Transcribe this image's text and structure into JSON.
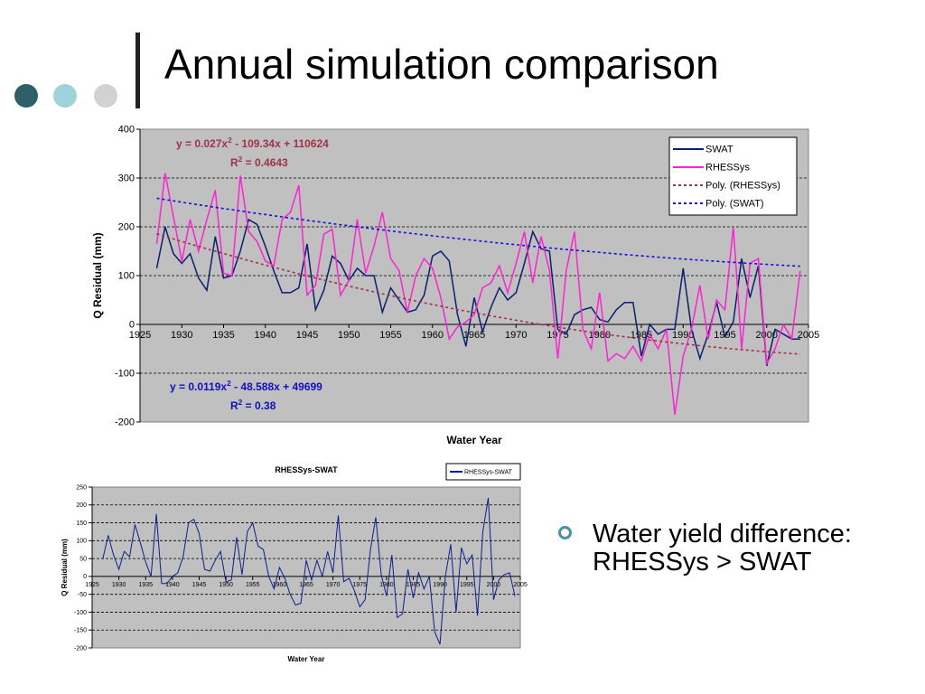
{
  "slide": {
    "title": "Annual simulation comparison",
    "bullet_line1": "Water yield difference:",
    "bullet_line2": "RHESSys > SWAT",
    "dot_colors": [
      "#2e5e67",
      "#9fd3dc",
      "#d2d2d2"
    ]
  },
  "chart_data": [
    {
      "type": "line",
      "xlabel": "Water Year",
      "ylabel": "Q Residual (mm)",
      "xlim": [
        1925,
        2005
      ],
      "ylim": [
        -200,
        400
      ],
      "xticks": [
        1925,
        1930,
        1935,
        1940,
        1945,
        1950,
        1955,
        1960,
        1965,
        1970,
        1975,
        1980,
        1985,
        1990,
        1995,
        2000,
        2005
      ],
      "yticks": [
        -200,
        -100,
        0,
        100,
        200,
        300,
        400
      ],
      "grid": "horizontal dashed",
      "legend_position": "top-right",
      "x": [
        1927,
        1928,
        1929,
        1930,
        1931,
        1932,
        1933,
        1934,
        1935,
        1936,
        1937,
        1938,
        1939,
        1940,
        1941,
        1942,
        1943,
        1944,
        1945,
        1946,
        1947,
        1948,
        1949,
        1950,
        1951,
        1952,
        1953,
        1954,
        1955,
        1956,
        1957,
        1958,
        1959,
        1960,
        1961,
        1962,
        1963,
        1964,
        1965,
        1966,
        1967,
        1968,
        1969,
        1970,
        1971,
        1972,
        1973,
        1974,
        1975,
        1976,
        1977,
        1978,
        1979,
        1980,
        1981,
        1982,
        1983,
        1984,
        1985,
        1986,
        1987,
        1988,
        1989,
        1990,
        1991,
        1992,
        1993,
        1994,
        1995,
        1996,
        1997,
        1998,
        1999,
        2000,
        2001,
        2002,
        2003,
        2004
      ],
      "series": [
        {
          "name": "SWAT",
          "color": "#0a1f6e",
          "style": "solid",
          "values": [
            115,
            200,
            145,
            125,
            145,
            95,
            70,
            180,
            95,
            100,
            150,
            215,
            205,
            160,
            110,
            65,
            65,
            75,
            165,
            30,
            70,
            140,
            125,
            90,
            115,
            100,
            100,
            25,
            75,
            50,
            25,
            30,
            60,
            140,
            150,
            130,
            20,
            -45,
            55,
            -15,
            35,
            75,
            50,
            65,
            125,
            190,
            155,
            150,
            -10,
            -20,
            20,
            30,
            35,
            10,
            5,
            30,
            45,
            45,
            -65,
            0,
            -20,
            -10,
            -10,
            115,
            -10,
            -70,
            -20,
            45,
            -25,
            5,
            135,
            55,
            120,
            -85,
            -10,
            -20,
            -30,
            -30
          ]
        },
        {
          "name": "RHESSys",
          "color": "#ff22d4",
          "style": "solid",
          "values": [
            165,
            310,
            220,
            130,
            215,
            150,
            215,
            275,
            105,
            100,
            305,
            190,
            170,
            130,
            120,
            215,
            230,
            285,
            60,
            80,
            185,
            195,
            60,
            90,
            215,
            105,
            160,
            230,
            135,
            110,
            25,
            100,
            135,
            115,
            55,
            -30,
            -5,
            5,
            20,
            75,
            85,
            120,
            65,
            125,
            190,
            85,
            180,
            110,
            -70,
            110,
            190,
            -10,
            -50,
            65,
            -75,
            -60,
            -70,
            -45,
            -75,
            -20,
            -50,
            -10,
            -185,
            -65,
            -10,
            80,
            -30,
            50,
            30,
            200,
            -50,
            125,
            135,
            -80,
            -50,
            0,
            -30,
            110
          ]
        },
        {
          "name": "Poly. (RHESSys)",
          "color": "#a0324a",
          "style": "dashed",
          "equation": "y = 0.027x² - 109.34x + 110624",
          "r2": "R² = 0.4643",
          "coef": [
            0.027,
            -109.34,
            110624
          ]
        },
        {
          "name": "Poly. (SWAT)",
          "color": "#1010e0",
          "style": "dashed",
          "equation": "y = 0.0119x² - 48.588x + 49699",
          "r2": "R² = 0.38",
          "coef": [
            0.0119,
            -48.588,
            49699
          ]
        }
      ],
      "annotations": [
        {
          "prefix": "y = 0.027x",
          "sup": "2",
          "suffix": " - 109.34x + 110624",
          "color": "#a0324a"
        },
        {
          "prefix": "R",
          "sup": "2",
          "suffix": " = 0.4643",
          "color": "#a0324a"
        },
        {
          "prefix": "y = 0.0119x",
          "sup": "2",
          "suffix": " - 48.588x + 49699",
          "color": "#1010c0"
        },
        {
          "prefix": "R",
          "sup": "2",
          "suffix": " = 0.38",
          "color": "#1010c0"
        }
      ]
    },
    {
      "type": "line",
      "title": "RHESSys-SWAT",
      "xlabel": "Water Year",
      "ylabel": "Q Residual (mm)",
      "xlim": [
        1925,
        2005
      ],
      "ylim": [
        -200,
        250
      ],
      "xticks": [
        1925,
        1930,
        1935,
        1940,
        1945,
        1950,
        1955,
        1960,
        1965,
        1970,
        1975,
        1980,
        1985,
        1990,
        1995,
        2000,
        2005
      ],
      "yticks": [
        -200,
        -150,
        -100,
        -50,
        0,
        50,
        100,
        150,
        200,
        250
      ],
      "grid": "horizontal dashed",
      "legend_position": "top-right",
      "x": [
        1927,
        1928,
        1929,
        1930,
        1931,
        1932,
        1933,
        1934,
        1935,
        1936,
        1937,
        1938,
        1939,
        1940,
        1941,
        1942,
        1943,
        1944,
        1945,
        1946,
        1947,
        1948,
        1949,
        1950,
        1951,
        1952,
        1953,
        1954,
        1955,
        1956,
        1957,
        1958,
        1959,
        1960,
        1961,
        1962,
        1963,
        1964,
        1965,
        1966,
        1967,
        1968,
        1969,
        1970,
        1971,
        1972,
        1973,
        1974,
        1975,
        1976,
        1977,
        1978,
        1979,
        1980,
        1981,
        1982,
        1983,
        1984,
        1985,
        1986,
        1987,
        1988,
        1989,
        1990,
        1991,
        1992,
        1993,
        1994,
        1995,
        1996,
        1997,
        1998,
        1999,
        2000,
        2001,
        2002,
        2003,
        2004
      ],
      "series": [
        {
          "name": "RHESSys-SWAT",
          "color": "#0a1f8e",
          "values": [
            50,
            115,
            60,
            20,
            70,
            55,
            145,
            95,
            40,
            0,
            175,
            -20,
            -20,
            0,
            10,
            55,
            150,
            160,
            120,
            20,
            15,
            45,
            70,
            -15,
            -10,
            110,
            5,
            125,
            150,
            85,
            75,
            0,
            -35,
            25,
            -5,
            -50,
            -80,
            -75,
            45,
            -10,
            45,
            0,
            70,
            10,
            170,
            -15,
            -5,
            -40,
            -85,
            -65,
            75,
            165,
            5,
            -55,
            60,
            -115,
            -105,
            20,
            -60,
            10,
            -35,
            0,
            -155,
            -190,
            0,
            90,
            -100,
            80,
            35,
            60,
            -110,
            125,
            220,
            -65,
            -10,
            5,
            10,
            -55
          ]
        }
      ]
    }
  ]
}
